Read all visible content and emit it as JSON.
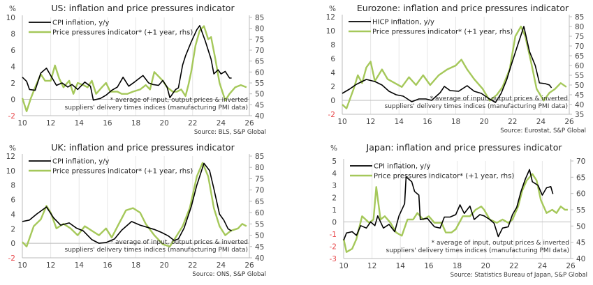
{
  "colors": {
    "cpi": "#000000",
    "ppi": "#a5c85a",
    "negative_tick": "#e8474a"
  },
  "chart_data": [
    {
      "type": "line",
      "title": "US: inflation and price pressures indicator",
      "left_unit": "%",
      "ylim_left": [
        -2,
        10
      ],
      "left_ticks": [
        -2,
        0,
        2,
        4,
        6,
        8,
        10
      ],
      "ylim_right": [
        40,
        85
      ],
      "right_ticks": [
        40,
        45,
        50,
        55,
        60,
        65,
        70,
        75,
        80,
        85
      ],
      "xlim": [
        10,
        26
      ],
      "x_ticks": [
        "10",
        "12",
        "14",
        "16",
        "18",
        "20",
        "22",
        "24",
        "26"
      ],
      "legend": [
        "CPI inflation, y/y",
        "Price pressures indicator* (+1 year, rhs)"
      ],
      "note": [
        "* average of input, output prices & inverted",
        "suppliers' delivery times indices (manufacturing PMI data)"
      ],
      "source": "Source: BLS, S&P Global",
      "series": [
        {
          "name": "CPI inflation, y/y",
          "axis": "left",
          "x": [
            10,
            10.3,
            10.5,
            10.9,
            11.3,
            11.7,
            12,
            12.4,
            12.8,
            13.2,
            13.5,
            13.9,
            14.4,
            14.8,
            15,
            15.5,
            15.9,
            16.3,
            16.7,
            17.1,
            17.5,
            17.9,
            18.5,
            18.9,
            19.2,
            19.6,
            19.9,
            20.2,
            20.4,
            20.8,
            21,
            21.3,
            21.5,
            21.9,
            22.3,
            22.5,
            22.9,
            23.3,
            23.5,
            23.8,
            24,
            24.3,
            24.6,
            24.75
          ],
          "y": [
            2.7,
            2.2,
            1.2,
            1.1,
            3.2,
            3.8,
            2.9,
            1.7,
            2.0,
            1.5,
            1.8,
            1.2,
            2.1,
            1.6,
            -0.1,
            0.1,
            0.5,
            1.1,
            1.5,
            2.7,
            1.6,
            2.1,
            2.9,
            2.0,
            1.8,
            1.7,
            2.3,
            1.5,
            0.2,
            1.2,
            1.4,
            4.2,
            5.3,
            7.0,
            8.5,
            9.0,
            7.1,
            4.9,
            3.1,
            3.6,
            3.1,
            3.4,
            2.6,
            2.6
          ]
        },
        {
          "name": "Price pressures indicator* (+1 year, rhs)",
          "axis": "right",
          "x": [
            10,
            10.3,
            10.6,
            10.9,
            11.3,
            11.6,
            12,
            12.3,
            12.6,
            12.9,
            13.3,
            13.6,
            13.9,
            14.3,
            14.6,
            14.9,
            15.2,
            15.6,
            15.9,
            16.2,
            16.7,
            17,
            17.4,
            17.8,
            18.3,
            18.7,
            19,
            19.3,
            19.6,
            19.9,
            20.2,
            20.6,
            20.9,
            21.2,
            21.5,
            21.7,
            21.9,
            22.2,
            22.5,
            22.8,
            23.1,
            23.3,
            23.6,
            23.9,
            24.3,
            24.6,
            25,
            25.4,
            25.8
          ],
          "y": [
            48,
            42,
            48,
            53,
            59,
            56,
            56,
            63,
            57,
            53,
            56,
            50,
            55,
            54,
            53,
            56,
            50,
            53,
            55,
            51,
            51,
            50,
            50,
            51,
            52,
            54,
            52,
            60,
            58,
            56,
            53,
            51,
            51,
            52,
            49,
            54,
            60,
            72,
            79,
            81,
            75,
            76,
            66,
            55,
            47,
            50,
            53,
            54,
            53
          ]
        }
      ]
    },
    {
      "type": "line",
      "title": "Eurozone: inflation and price pressures indicator",
      "left_unit": "%",
      "ylim_left": [
        -2,
        12
      ],
      "left_ticks": [
        -2,
        0,
        2,
        4,
        6,
        8,
        10,
        12
      ],
      "ylim_right": [
        35,
        85
      ],
      "right_ticks": [
        35,
        40,
        45,
        50,
        55,
        60,
        65,
        70,
        75,
        80,
        85
      ],
      "xlim": [
        10,
        26
      ],
      "x_ticks": [
        "10",
        "12",
        "14",
        "16",
        "18",
        "20",
        "22",
        "24",
        "26"
      ],
      "legend": [
        "HICP inflation, y/y",
        "Price pressures indicator* (+1 year, rhs)"
      ],
      "note": [
        "* average of input, output prices & inverted",
        "suppliers' delivery times indices (manufacturing PMI data)"
      ],
      "source": "Source: Eurostat, S&P Global",
      "series": [
        {
          "name": "HICP inflation, y/y",
          "axis": "left",
          "x": [
            10,
            10.5,
            11,
            11.7,
            12.3,
            12.8,
            13.3,
            13.8,
            14.3,
            14.9,
            15.4,
            15.9,
            16.3,
            16.9,
            17.2,
            17.6,
            18.2,
            18.8,
            19.3,
            19.8,
            20.3,
            20.8,
            21.2,
            21.6,
            21.9,
            22.3,
            22.8,
            23.2,
            23.6,
            23.9,
            24.3,
            24.6,
            24.75
          ],
          "y": [
            1.0,
            1.6,
            2.3,
            3.0,
            2.7,
            2.2,
            1.3,
            0.8,
            0.6,
            -0.2,
            0.2,
            0.2,
            0,
            1.1,
            2.0,
            1.4,
            1.3,
            2.1,
            1.3,
            1.0,
            0.3,
            -0.3,
            1.0,
            3.0,
            5.0,
            7.5,
            10.6,
            7,
            5,
            2.5,
            2.4,
            2.2,
            1.8
          ]
        },
        {
          "name": "Price pressures indicator* (+1 year, rhs)",
          "axis": "right",
          "x": [
            10,
            10.3,
            10.8,
            11.1,
            11.4,
            11.7,
            12,
            12.3,
            12.8,
            13.2,
            13.7,
            14.2,
            14.7,
            15.2,
            15.7,
            16.2,
            16.8,
            17.4,
            18,
            18.4,
            18.8,
            19.3,
            19.9,
            20.4,
            20.9,
            21.3,
            21.8,
            22.2,
            22.6,
            22.9,
            23.3,
            23.7,
            24.2,
            24.6,
            25,
            25.4,
            25.8
          ],
          "y": [
            40,
            38,
            48,
            55,
            51,
            59,
            62,
            52,
            58,
            53,
            51,
            49,
            54,
            50,
            55,
            50,
            55,
            58,
            60,
            63,
            58,
            53,
            48,
            42,
            45,
            49,
            58,
            75,
            80,
            75,
            62,
            48,
            42,
            46,
            48,
            51,
            49
          ]
        }
      ]
    },
    {
      "type": "line",
      "title": "UK: inflation and price pressures indicator",
      "left_unit": "%",
      "ylim_left": [
        -2,
        12
      ],
      "left_ticks": [
        -2,
        0,
        2,
        4,
        6,
        8,
        10,
        12
      ],
      "ylim_right": [
        40,
        85
      ],
      "right_ticks": [
        40,
        45,
        50,
        55,
        60,
        65,
        70,
        75,
        80,
        85
      ],
      "xlim": [
        10,
        26
      ],
      "x_ticks": [
        "10",
        "12",
        "14",
        "16",
        "18",
        "20",
        "22",
        "24",
        "26"
      ],
      "legend": [
        "CPI inflation, y/y",
        "Price pressures indicator* (+1 year, rhs)"
      ],
      "note": [
        "* average of input, output prices & inverted",
        "suppliers' delivery times indices (manufacturing PMI data)"
      ],
      "source": "Source: ONS, S&P Global",
      "series": [
        {
          "name": "CPI inflation, y/y",
          "axis": "left",
          "x": [
            10,
            10.5,
            11,
            11.7,
            12.2,
            12.7,
            13.3,
            13.8,
            14.3,
            14.9,
            15.4,
            15.9,
            16.5,
            17,
            17.7,
            18.3,
            18.8,
            19.3,
            19.8,
            20.3,
            20.7,
            21,
            21.4,
            21.9,
            22.3,
            22.8,
            23.2,
            23.5,
            23.9,
            24.2,
            24.5,
            24.75
          ],
          "y": [
            3.0,
            3.2,
            4.0,
            5.0,
            3.5,
            2.5,
            2.8,
            2.1,
            1.7,
            0.5,
            0.0,
            0.1,
            0.6,
            1.8,
            3.0,
            2.5,
            2.2,
            1.9,
            1.5,
            1.0,
            0.4,
            0.6,
            2.1,
            5.0,
            8,
            11,
            10,
            7.5,
            4,
            3.2,
            2,
            1.7
          ]
        },
        {
          "name": "Price pressures indicator* (+1 year, rhs)",
          "axis": "right",
          "x": [
            10,
            10.3,
            10.8,
            11.3,
            11.7,
            12,
            12.4,
            12.9,
            13.4,
            13.9,
            14.4,
            14.9,
            15.4,
            15.9,
            16.3,
            16.8,
            17.3,
            17.8,
            18.3,
            18.7,
            19.3,
            19.9,
            20.4,
            20.9,
            21.3,
            21.8,
            22.3,
            22.7,
            23.1,
            23.5,
            23.9,
            24.3,
            24.7,
            25.2,
            25.5,
            25.8
          ],
          "y": [
            47,
            45,
            54,
            57,
            63,
            60,
            53,
            55,
            53,
            50,
            54,
            52,
            50,
            53,
            49,
            55,
            61,
            62,
            60,
            55,
            50,
            46,
            45,
            50,
            54,
            62,
            76,
            82,
            76,
            62,
            54,
            50,
            52,
            53,
            55,
            54
          ]
        }
      ]
    },
    {
      "type": "line",
      "title": "Japan: inflation and price pressures indicator",
      "left_unit": "%",
      "ylim_left": [
        -3,
        5
      ],
      "left_ticks": [
        -3,
        -2,
        -1,
        0,
        1,
        2,
        3,
        4,
        5
      ],
      "ylim_right": [
        40,
        70
      ],
      "right_ticks": [
        40,
        45,
        50,
        55,
        60,
        65,
        70
      ],
      "xlim": [
        10,
        26
      ],
      "x_ticks": [
        "10",
        "12",
        "14",
        "16",
        "18",
        "20",
        "22",
        "24",
        "26"
      ],
      "legend": [
        "CPI inflation, y/y",
        "Price pressures indicator* (+1 year, rhs)"
      ],
      "note": [
        "* average of input, output prices & inverted",
        "suppliers' delivery times indices (manufacturing PMI data)"
      ],
      "source": "Source: Statistics Bureau of Japan, S&P Global",
      "series": [
        {
          "name": "CPI inflation, y/y",
          "axis": "left",
          "x": [
            10,
            10.2,
            10.6,
            10.9,
            11.2,
            11.6,
            11.9,
            12.2,
            12.4,
            12.8,
            13.2,
            13.6,
            13.9,
            14.3,
            14.4,
            14.8,
            15,
            15.3,
            15.4,
            15.9,
            16.4,
            16.8,
            17.1,
            17.5,
            17.9,
            18.2,
            18.5,
            18.9,
            19.2,
            19.6,
            19.9,
            20.3,
            20.6,
            20.9,
            21.2,
            21.6,
            21.9,
            22.2,
            22.5,
            22.8,
            23.1,
            23.3,
            23.7,
            24,
            24.3,
            24.6,
            24.75
          ],
          "y": [
            -1.5,
            -0.9,
            -0.8,
            -1.1,
            -0.3,
            -0.5,
            0.0,
            -0.3,
            0.5,
            -0.5,
            -0.2,
            -0.8,
            0.5,
            1.5,
            3.7,
            3.3,
            2.5,
            2.2,
            0.2,
            0.3,
            -0.4,
            -0.5,
            0.4,
            0.4,
            0.6,
            1.4,
            0.7,
            1.3,
            0.2,
            0.6,
            0.5,
            0.2,
            -0.1,
            -1.2,
            -0.5,
            -0.4,
            0.6,
            1.2,
            2.5,
            3.5,
            4.3,
            3.3,
            3.0,
            2.2,
            2.8,
            2.9,
            2.3
          ]
        },
        {
          "name": "Price pressures indicator* (+1 year, rhs)",
          "axis": "right",
          "x": [
            10,
            10.2,
            10.6,
            10.9,
            11.3,
            11.8,
            12.1,
            12.3,
            12.6,
            12.9,
            13.3,
            13.7,
            14.1,
            14.5,
            14.9,
            15.2,
            15.6,
            16,
            16.4,
            16.9,
            17.2,
            17.6,
            17.9,
            18.4,
            18.9,
            19.3,
            19.7,
            19.9,
            20.3,
            20.8,
            21.2,
            21.6,
            21.9,
            22.3,
            22.6,
            22.9,
            23.3,
            23.6,
            23.9,
            24.3,
            24.7,
            25,
            25.3,
            25.6,
            25.8
          ],
          "y": [
            46,
            42,
            43,
            46,
            53,
            51,
            52,
            62,
            52,
            53,
            51,
            48,
            47,
            52,
            52,
            54,
            52,
            53,
            51,
            51,
            48,
            48,
            49,
            53,
            53,
            55,
            56,
            55,
            52,
            51,
            52,
            51,
            52,
            56,
            61,
            64,
            66,
            64,
            58,
            54,
            55,
            54,
            56,
            55,
            55
          ]
        }
      ]
    }
  ]
}
